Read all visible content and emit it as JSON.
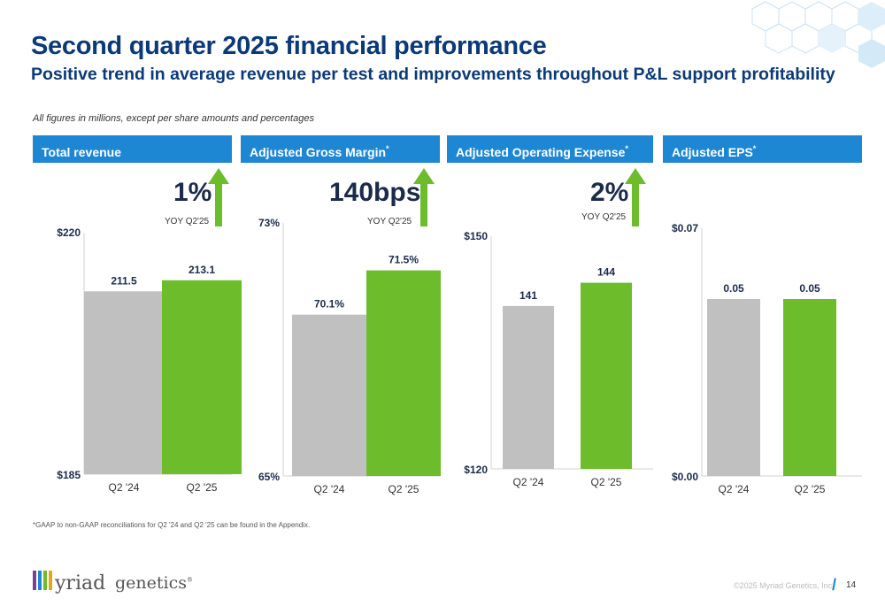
{
  "slide": {
    "title": "Second quarter 2025 financial performance",
    "subtitle": "Positive trend in average revenue per test and improvements throughout P&L support profitability",
    "note": "All figures in millions, except per share amounts and percentages",
    "footnote": "*GAAP to non-GAAP reconciliations for Q2 '24 and Q2 '25 can be found in the Appendix.",
    "copyright": "©2025 Myriad Genetics, Inc.",
    "page_number": "14",
    "logo_text": "Myriad genetics",
    "logo_mark": "registered-mark"
  },
  "colors": {
    "header_blue": "#1e87d3",
    "title_navy": "#0b3a78",
    "prior_bar": "#c0c0c0",
    "current_bar": "#6cbc2b",
    "arrow_green": "#6cbc2b"
  },
  "panels": [
    {
      "header": "Total revenue",
      "asterisk": "",
      "kpi": "1%",
      "kpi_sub": "YOY Q2'25",
      "arrow_icon": "up-arrow-icon"
    },
    {
      "header": "Adjusted Gross Margin",
      "asterisk": "*",
      "kpi": "140bps",
      "kpi_sub": "YOY Q2'25",
      "arrow_icon": "up-arrow-icon"
    },
    {
      "header": "Adjusted Operating Expense",
      "asterisk": "*",
      "kpi": "2%",
      "kpi_sub": "YOY Q2'25",
      "arrow_icon": "up-arrow-icon"
    },
    {
      "header": "Adjusted EPS",
      "asterisk": "*",
      "kpi": "",
      "kpi_sub": "",
      "arrow_icon": ""
    }
  ],
  "chart_data": [
    {
      "type": "bar",
      "title": "Total revenue",
      "categories": [
        "Q2 '24",
        "Q2 '25"
      ],
      "values": [
        211.5,
        213.1
      ],
      "data_labels": [
        "211.5",
        "213.1"
      ],
      "ylim": [
        185,
        220
      ],
      "y_tick_labels": [
        "$185",
        "$220"
      ],
      "grid": false
    },
    {
      "type": "bar",
      "title": "Adjusted Gross Margin",
      "categories": [
        "Q2 '24",
        "Q2 '25"
      ],
      "values": [
        70.1,
        71.5
      ],
      "data_labels": [
        "70.1%",
        "71.5%"
      ],
      "ylim": [
        65,
        73
      ],
      "y_tick_labels": [
        "65%",
        "73%"
      ],
      "grid": false
    },
    {
      "type": "bar",
      "title": "Adjusted Operating Expense",
      "categories": [
        "Q2 '24",
        "Q2 '25"
      ],
      "values": [
        141,
        144
      ],
      "data_labels": [
        "141",
        "144"
      ],
      "ylim": [
        120,
        150
      ],
      "y_tick_labels": [
        "$120",
        "$150"
      ],
      "grid": false
    },
    {
      "type": "bar",
      "title": "Adjusted EPS",
      "categories": [
        "Q2 '24",
        "Q2 '25"
      ],
      "values": [
        0.05,
        0.05
      ],
      "data_labels": [
        "0.05",
        "0.05"
      ],
      "ylim": [
        0,
        0.07
      ],
      "y_tick_labels": [
        "$0.00",
        "$0.07"
      ],
      "grid": false
    }
  ]
}
